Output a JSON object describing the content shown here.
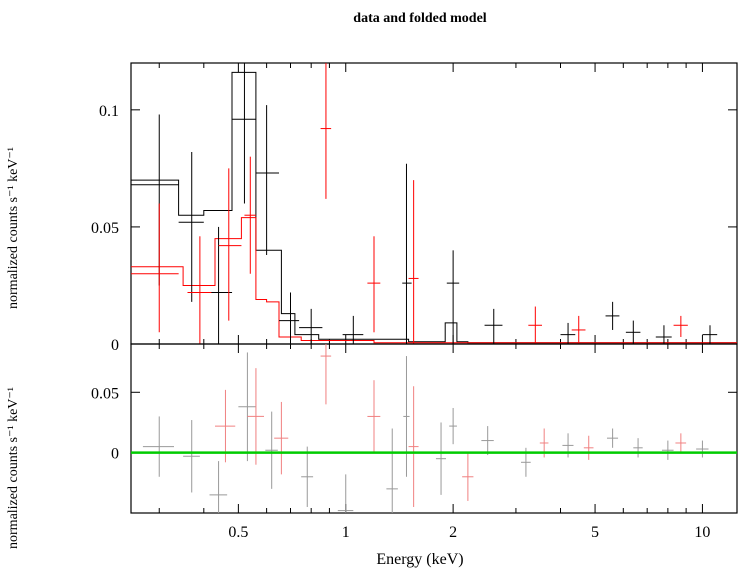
{
  "chart_data": {
    "type": "scatter",
    "title": "data and folded model",
    "xlabel": "Energy (keV)",
    "top_panel": {
      "ylabel": "normalized counts s⁻¹ keV⁻¹",
      "xlim": [
        0.25,
        12.5
      ],
      "xscale": "log",
      "ylim": [
        0,
        0.12
      ],
      "yticks": [
        {
          "v": 0,
          "label": "0"
        },
        {
          "v": 0.05,
          "label": "0.05"
        },
        {
          "v": 0.1,
          "label": "0.1"
        }
      ],
      "series": [
        {
          "color": "#000000",
          "points": [
            {
              "x": 0.3,
              "xlo": 0.25,
              "xhi": 0.34,
              "y": 0.068,
              "ylo": 0.025,
              "yhi": 0.098
            },
            {
              "x": 0.37,
              "xlo": 0.34,
              "xhi": 0.4,
              "y": 0.052,
              "ylo": 0.018,
              "yhi": 0.082
            },
            {
              "x": 0.44,
              "xlo": 0.4,
              "xhi": 0.48,
              "y": 0.022,
              "ylo": 0.0,
              "yhi": 0.05
            },
            {
              "x": 0.52,
              "xlo": 0.48,
              "xhi": 0.56,
              "y": 0.096,
              "ylo": 0.06,
              "yhi": 0.12
            },
            {
              "x": 0.6,
              "xlo": 0.56,
              "xhi": 0.65,
              "y": 0.073,
              "ylo": 0.038,
              "yhi": 0.102
            },
            {
              "x": 0.7,
              "xlo": 0.65,
              "xhi": 0.74,
              "y": 0.01,
              "ylo": 0.0,
              "yhi": 0.022
            },
            {
              "x": 0.8,
              "xlo": 0.74,
              "xhi": 0.86,
              "y": 0.007,
              "ylo": 0.0,
              "yhi": 0.015
            },
            {
              "x": 1.05,
              "xlo": 0.98,
              "xhi": 1.12,
              "y": 0.004,
              "ylo": 0.0,
              "yhi": 0.012
            },
            {
              "x": 1.48,
              "xlo": 1.44,
              "xhi": 1.53,
              "y": 0.026,
              "ylo": 0.0,
              "yhi": 0.077
            },
            {
              "x": 2.0,
              "xlo": 1.92,
              "xhi": 2.08,
              "y": 0.026,
              "ylo": 0.0,
              "yhi": 0.04
            },
            {
              "x": 2.6,
              "xlo": 2.45,
              "xhi": 2.75,
              "y": 0.008,
              "ylo": 0.0,
              "yhi": 0.015
            },
            {
              "x": 4.2,
              "xlo": 4.0,
              "xhi": 4.4,
              "y": 0.004,
              "ylo": 0.0,
              "yhi": 0.009
            },
            {
              "x": 5.6,
              "xlo": 5.35,
              "xhi": 5.85,
              "y": 0.012,
              "ylo": 0.006,
              "yhi": 0.018
            },
            {
              "x": 6.4,
              "xlo": 6.1,
              "xhi": 6.7,
              "y": 0.005,
              "ylo": 0.0,
              "yhi": 0.01
            },
            {
              "x": 7.8,
              "xlo": 7.4,
              "xhi": 8.2,
              "y": 0.003,
              "ylo": 0.0,
              "yhi": 0.008
            },
            {
              "x": 10.5,
              "xlo": 10.0,
              "xhi": 11.0,
              "y": 0.004,
              "ylo": 0.0,
              "yhi": 0.008
            }
          ]
        },
        {
          "color": "#ff0000",
          "points": [
            {
              "x": 0.3,
              "xlo": 0.25,
              "xhi": 0.34,
              "y": 0.03,
              "ylo": 0.005,
              "yhi": 0.06
            },
            {
              "x": 0.39,
              "xlo": 0.36,
              "xhi": 0.42,
              "y": 0.022,
              "ylo": 0.0,
              "yhi": 0.046
            },
            {
              "x": 0.47,
              "xlo": 0.44,
              "xhi": 0.51,
              "y": 0.042,
              "ylo": 0.01,
              "yhi": 0.075
            },
            {
              "x": 0.54,
              "xlo": 0.52,
              "xhi": 0.56,
              "y": 0.055,
              "ylo": 0.03,
              "yhi": 0.08
            },
            {
              "x": 0.88,
              "xlo": 0.85,
              "xhi": 0.91,
              "y": 0.092,
              "ylo": 0.062,
              "yhi": 0.12
            },
            {
              "x": 1.2,
              "xlo": 1.15,
              "xhi": 1.25,
              "y": 0.026,
              "ylo": 0.005,
              "yhi": 0.046
            },
            {
              "x": 1.55,
              "xlo": 1.5,
              "xhi": 1.6,
              "y": 0.028,
              "ylo": 0.0,
              "yhi": 0.07
            },
            {
              "x": 3.4,
              "xlo": 3.25,
              "xhi": 3.55,
              "y": 0.008,
              "ylo": 0.0,
              "yhi": 0.016
            },
            {
              "x": 4.5,
              "xlo": 4.3,
              "xhi": 4.7,
              "y": 0.006,
              "ylo": 0.0,
              "yhi": 0.012
            },
            {
              "x": 8.7,
              "xlo": 8.3,
              "xhi": 9.1,
              "y": 0.008,
              "ylo": 0.003,
              "yhi": 0.012
            }
          ]
        }
      ],
      "model_black": [
        {
          "x0": 0.25,
          "x1": 0.34,
          "y": 0.07
        },
        {
          "x0": 0.34,
          "x1": 0.4,
          "y": 0.055
        },
        {
          "x0": 0.4,
          "x1": 0.48,
          "y": 0.057
        },
        {
          "x0": 0.48,
          "x1": 0.56,
          "y": 0.116
        },
        {
          "x0": 0.56,
          "x1": 0.61,
          "y": 0.04
        },
        {
          "x0": 0.61,
          "x1": 0.66,
          "y": 0.04
        },
        {
          "x0": 0.66,
          "x1": 0.72,
          "y": 0.013
        },
        {
          "x0": 0.72,
          "x1": 0.84,
          "y": 0.004
        },
        {
          "x0": 0.84,
          "x1": 1.5,
          "y": 0.002
        },
        {
          "x0": 1.5,
          "x1": 1.9,
          "y": 0.001
        },
        {
          "x0": 1.9,
          "x1": 2.05,
          "y": 0.009
        },
        {
          "x0": 2.05,
          "x1": 2.2,
          "y": 0.001
        },
        {
          "x0": 2.2,
          "x1": 12.5,
          "y": 0.0005
        }
      ],
      "model_red": [
        {
          "x0": 0.25,
          "x1": 0.35,
          "y": 0.033
        },
        {
          "x0": 0.35,
          "x1": 0.43,
          "y": 0.025
        },
        {
          "x0": 0.43,
          "x1": 0.51,
          "y": 0.045
        },
        {
          "x0": 0.51,
          "x1": 0.56,
          "y": 0.054
        },
        {
          "x0": 0.56,
          "x1": 0.6,
          "y": 0.019
        },
        {
          "x0": 0.6,
          "x1": 0.65,
          "y": 0.018
        },
        {
          "x0": 0.65,
          "x1": 0.75,
          "y": 0.003
        },
        {
          "x0": 0.75,
          "x1": 1.2,
          "y": 0.0015
        },
        {
          "x0": 1.2,
          "x1": 12.5,
          "y": 0.0005
        }
      ]
    },
    "bottom_panel": {
      "ylabel": "normalized counts s⁻¹ keV⁻¹",
      "xlim": [
        0.25,
        12.5
      ],
      "xscale": "log",
      "ylim": [
        -0.05,
        0.09
      ],
      "yticks": [
        {
          "v": 0,
          "label": "0"
        },
        {
          "v": 0.05,
          "label": "0.05"
        }
      ],
      "xticks": [
        {
          "v": 0.5,
          "label": "0.5"
        },
        {
          "v": 1,
          "label": "1"
        },
        {
          "v": 2,
          "label": "2"
        },
        {
          "v": 5,
          "label": "5"
        },
        {
          "v": 10,
          "label": "10"
        }
      ],
      "model_color": "#00cc00",
      "series": [
        {
          "color": "#999999",
          "points": [
            {
              "x": 0.3,
              "dx": 0.03,
              "y": 0.005,
              "e": 0.025
            },
            {
              "x": 0.37,
              "dx": 0.02,
              "y": -0.003,
              "e": 0.03
            },
            {
              "x": 0.44,
              "dx": 0.025,
              "y": -0.035,
              "e": 0.028
            },
            {
              "x": 0.53,
              "dx": 0.03,
              "y": 0.038,
              "e": 0.045
            },
            {
              "x": 0.62,
              "dx": 0.025,
              "y": 0.002,
              "e": 0.032
            },
            {
              "x": 0.78,
              "dx": 0.03,
              "y": -0.02,
              "e": 0.025
            },
            {
              "x": 1.0,
              "dx": 0.05,
              "y": -0.048,
              "e": 0.03
            },
            {
              "x": 1.35,
              "dx": 0.05,
              "y": -0.03,
              "e": 0.05
            },
            {
              "x": 1.48,
              "dx": 0.03,
              "y": 0.03,
              "e": 0.05
            },
            {
              "x": 1.85,
              "dx": 0.06,
              "y": -0.005,
              "e": 0.03
            },
            {
              "x": 2.0,
              "dx": 0.05,
              "y": 0.022,
              "e": 0.015
            },
            {
              "x": 2.5,
              "dx": 0.1,
              "y": 0.01,
              "e": 0.012
            },
            {
              "x": 3.2,
              "dx": 0.1,
              "y": -0.008,
              "e": 0.012
            },
            {
              "x": 4.2,
              "dx": 0.15,
              "y": 0.006,
              "e": 0.01
            },
            {
              "x": 5.6,
              "dx": 0.2,
              "y": 0.012,
              "e": 0.008
            },
            {
              "x": 6.6,
              "dx": 0.2,
              "y": 0.004,
              "e": 0.008
            },
            {
              "x": 8.0,
              "dx": 0.3,
              "y": 0.002,
              "e": 0.008
            },
            {
              "x": 10.0,
              "dx": 0.4,
              "y": 0.003,
              "e": 0.007
            }
          ]
        },
        {
          "color": "#f08080",
          "points": [
            {
              "x": 0.46,
              "dx": 0.03,
              "y": 0.022,
              "e": 0.03
            },
            {
              "x": 0.56,
              "dx": 0.03,
              "y": 0.03,
              "e": 0.04
            },
            {
              "x": 0.66,
              "dx": 0.03,
              "y": 0.012,
              "e": 0.03
            },
            {
              "x": 0.88,
              "dx": 0.03,
              "y": 0.08,
              "e": 0.04
            },
            {
              "x": 1.2,
              "dx": 0.05,
              "y": 0.03,
              "e": 0.03
            },
            {
              "x": 1.55,
              "dx": 0.05,
              "y": 0.005,
              "e": 0.05
            },
            {
              "x": 2.2,
              "dx": 0.08,
              "y": -0.02,
              "e": 0.02
            },
            {
              "x": 3.6,
              "dx": 0.1,
              "y": 0.008,
              "e": 0.012
            },
            {
              "x": 4.8,
              "dx": 0.15,
              "y": 0.004,
              "e": 0.01
            },
            {
              "x": 8.7,
              "dx": 0.3,
              "y": 0.008,
              "e": 0.008
            }
          ]
        }
      ]
    }
  }
}
